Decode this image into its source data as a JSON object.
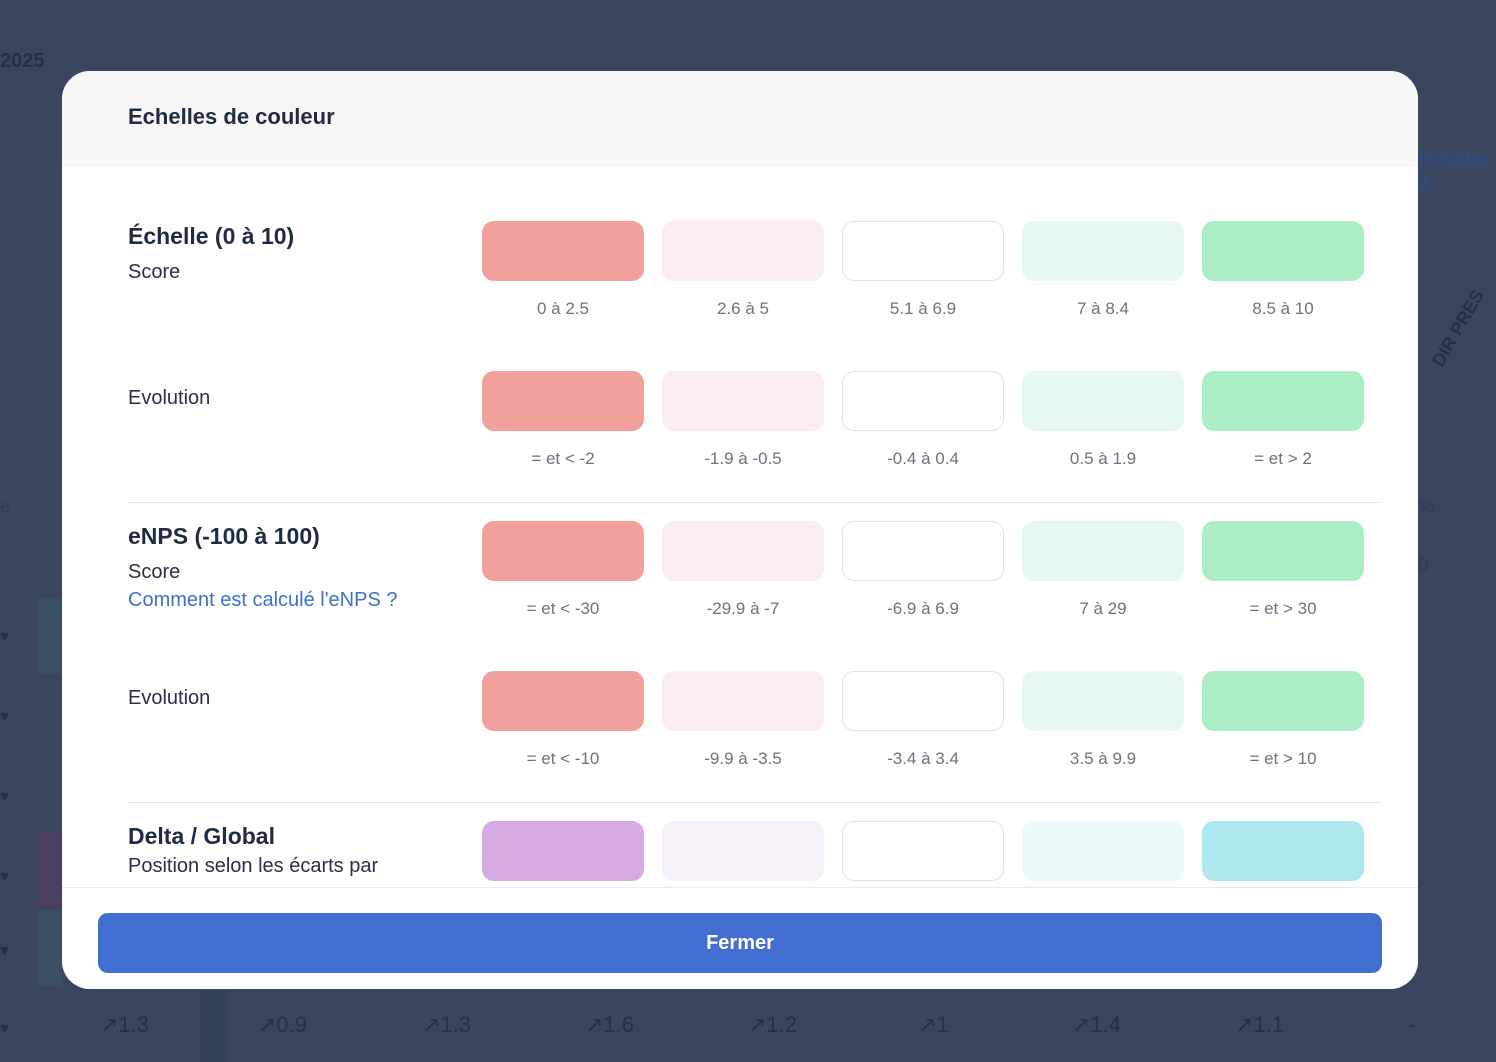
{
  "background": {
    "year_fragment": "2025",
    "title_fragment": "Echelles d",
    "dir_fragment": "DIR PRES",
    "left_fragment": "e",
    "pct_fragment": "%",
    "zero_fragment": "0",
    "bottom_values": [
      "↗1.3",
      "↗0.9",
      "↗1.3",
      "↗1.6",
      "↗1.2",
      "↗1",
      "↗1.4",
      "↗1.1",
      "-"
    ]
  },
  "modal": {
    "title": "Echelles de couleur",
    "close_label": "Fermer"
  },
  "colors": {
    "red_strong": "#f2a09c",
    "red_light": "#fbeded",
    "white": "#ffffff",
    "green_light": "#e6f9ee",
    "green_strong": "#abedc4",
    "purple_strong": "#d6abe3",
    "purple_light": "#f6f0f8",
    "cyan_light": "#ecf9fa",
    "cyan_strong": "#ade8ee",
    "accent": "#436ed1"
  },
  "sections": [
    {
      "title": "Échelle (0 à 10)",
      "rows": [
        {
          "label": "Score",
          "ranges": [
            "0 à 2.5",
            "2.6 à 5",
            "5.1 à 6.9",
            "7 à 8.4",
            "8.5 à 10"
          ]
        },
        {
          "label": "Evolution",
          "ranges": [
            "= et < -2",
            "-1.9 à -0.5",
            "-0.4 à 0.4",
            "0.5 à 1.9",
            "= et > 2"
          ]
        }
      ]
    },
    {
      "title": "eNPS (-100 à 100)",
      "link": "Comment est calculé l'eNPS ?",
      "rows": [
        {
          "label": "Score",
          "ranges": [
            "= et < -30",
            "-29.9 à -7",
            "-6.9 à 6.9",
            "7 à 29",
            "= et > 30"
          ]
        },
        {
          "label": "Evolution",
          "ranges": [
            "= et < -10",
            "-9.9 à -3.5",
            "-3.4 à 3.4",
            "3.5 à 9.9",
            "= et > 10"
          ]
        }
      ]
    },
    {
      "title": "Delta / Global",
      "description": "Position selon les écarts par"
    }
  ]
}
